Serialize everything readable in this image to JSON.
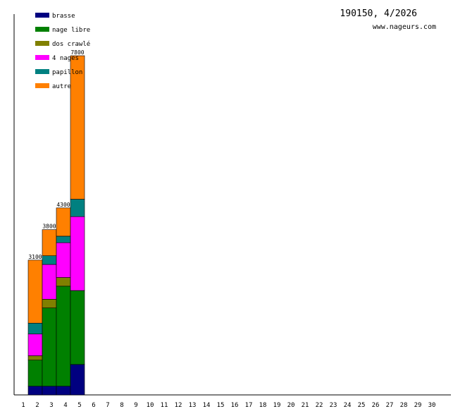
{
  "header": {
    "title": "190150, 4/2026",
    "site": "www.nageurs.com"
  },
  "chart_data": {
    "type": "bar",
    "stacked": true,
    "categories": [
      "1",
      "2",
      "3",
      "4",
      "5",
      "6",
      "7",
      "8",
      "9",
      "10",
      "11",
      "12",
      "13",
      "14",
      "15",
      "16",
      "17",
      "18",
      "19",
      "20",
      "21",
      "22",
      "23",
      "24",
      "25",
      "26",
      "27",
      "28",
      "29",
      "30"
    ],
    "series": [
      {
        "name": "brasse",
        "color": "#000080",
        "values": [
          0,
          200,
          200,
          200,
          700,
          0,
          0,
          0,
          0,
          0,
          0,
          0,
          0,
          0,
          0,
          0,
          0,
          0,
          0,
          0,
          0,
          0,
          0,
          0,
          0,
          0,
          0,
          0,
          0,
          0
        ]
      },
      {
        "name": "nage libre",
        "color": "#008000",
        "values": [
          0,
          600,
          1800,
          2300,
          1700,
          0,
          0,
          0,
          0,
          0,
          0,
          0,
          0,
          0,
          0,
          0,
          0,
          0,
          0,
          0,
          0,
          0,
          0,
          0,
          0,
          0,
          0,
          0,
          0,
          0
        ]
      },
      {
        "name": "dos crawlé",
        "color": "#808000",
        "values": [
          0,
          100,
          200,
          200,
          0,
          0,
          0,
          0,
          0,
          0,
          0,
          0,
          0,
          0,
          0,
          0,
          0,
          0,
          0,
          0,
          0,
          0,
          0,
          0,
          0,
          0,
          0,
          0,
          0,
          0
        ]
      },
      {
        "name": "4 nages",
        "color": "#ff00ff",
        "values": [
          0,
          500,
          800,
          800,
          1700,
          0,
          0,
          0,
          0,
          0,
          0,
          0,
          0,
          0,
          0,
          0,
          0,
          0,
          0,
          0,
          0,
          0,
          0,
          0,
          0,
          0,
          0,
          0,
          0,
          0
        ]
      },
      {
        "name": "papillon",
        "color": "#008080",
        "values": [
          0,
          250,
          200,
          150,
          400,
          0,
          0,
          0,
          0,
          0,
          0,
          0,
          0,
          0,
          0,
          0,
          0,
          0,
          0,
          0,
          0,
          0,
          0,
          0,
          0,
          0,
          0,
          0,
          0,
          0
        ]
      },
      {
        "name": "autre",
        "color": "#ff8000",
        "values": [
          0,
          1450,
          600,
          650,
          3300,
          0,
          0,
          0,
          0,
          0,
          0,
          0,
          0,
          0,
          0,
          0,
          0,
          0,
          0,
          0,
          0,
          0,
          0,
          0,
          0,
          0,
          0,
          0,
          0,
          0
        ]
      }
    ],
    "totals": [
      null,
      "3100",
      "3800",
      "4300",
      "7800",
      null,
      null,
      null,
      null,
      null,
      null,
      null,
      null,
      null,
      null,
      null,
      null,
      null,
      null,
      null,
      null,
      null,
      null,
      null,
      null,
      null,
      null,
      null,
      null,
      null
    ],
    "ylim": [
      0,
      7800
    ],
    "grid": false,
    "legend_position": "top-left"
  }
}
